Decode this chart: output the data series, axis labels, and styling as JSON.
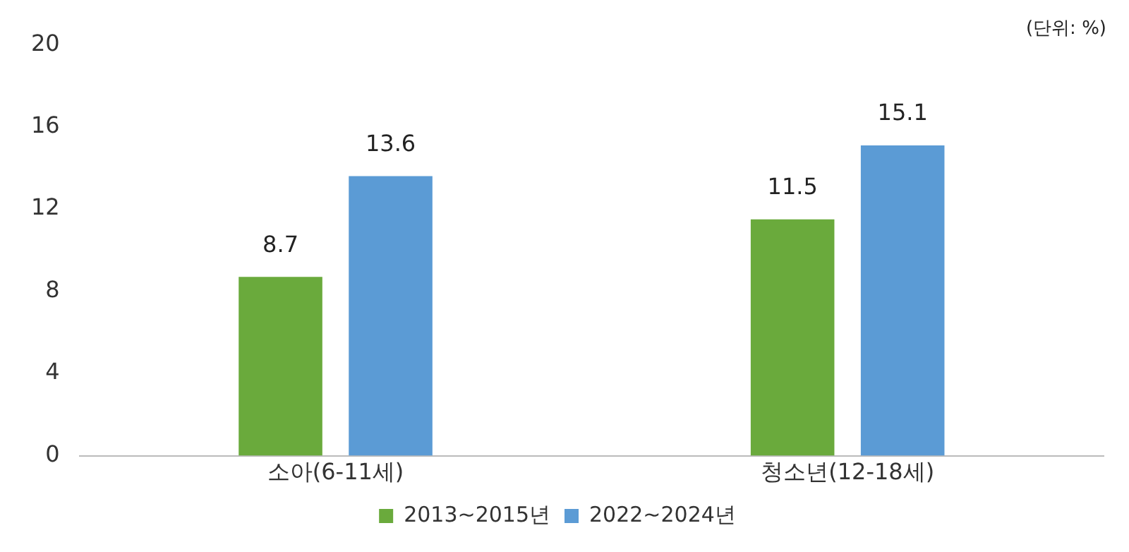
{
  "chart_data": {
    "type": "bar",
    "categories": [
      "소아(6-11세)",
      "청소년(12-18세)"
    ],
    "series": [
      {
        "name": "2013~2015년",
        "color": "#6aaa3c",
        "values": [
          8.7,
          11.5
        ]
      },
      {
        "name": "2022~2024년",
        "color": "#5b9bd5",
        "values": [
          13.6,
          15.1
        ]
      }
    ],
    "ylim": [
      0,
      20
    ],
    "yticks": [
      0,
      4,
      8,
      12,
      16,
      20
    ],
    "grid": false,
    "legend": "bottom",
    "data_labels": true,
    "annotations": [
      "(단위: %)"
    ]
  }
}
